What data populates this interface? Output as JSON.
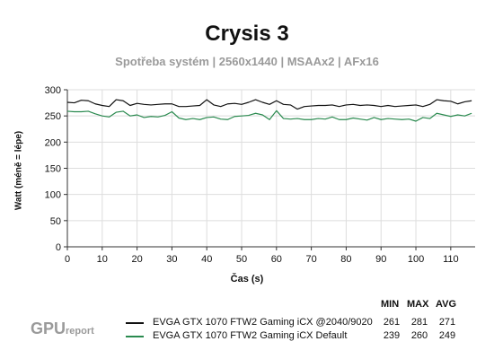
{
  "chart_data": {
    "type": "line",
    "title": "Crysis 3",
    "subtitle": "Spotřeba systém | 2560x1440 | MSAAx2 | AFx16",
    "xlabel": "Čas (s)",
    "ylabel": "Watt (méně = lépe)",
    "xlim": [
      0,
      117
    ],
    "ylim": [
      0,
      300
    ],
    "xticks": [
      0,
      10,
      20,
      30,
      40,
      50,
      60,
      70,
      80,
      90,
      100,
      110
    ],
    "yticks": [
      0,
      50,
      100,
      150,
      200,
      250,
      300
    ],
    "grid": true,
    "legend_position": "bottom",
    "stat_headers": [
      "MIN",
      "MAX",
      "AVG"
    ],
    "series": [
      {
        "name": "EVGA GTX 1070 FTW2 Gaming iCX @2040/9020",
        "color": "#111111",
        "min": "261",
        "max": "281",
        "avg": "271",
        "x": [
          0,
          2,
          4,
          6,
          8,
          10,
          12,
          14,
          16,
          18,
          20,
          22,
          24,
          26,
          28,
          30,
          32,
          34,
          36,
          38,
          40,
          42,
          44,
          46,
          48,
          50,
          52,
          54,
          56,
          58,
          60,
          62,
          64,
          66,
          68,
          70,
          72,
          74,
          76,
          78,
          80,
          82,
          84,
          86,
          88,
          90,
          92,
          94,
          96,
          98,
          100,
          102,
          104,
          106,
          108,
          110,
          112,
          114,
          116
        ],
        "values": [
          276,
          275,
          280,
          279,
          273,
          270,
          268,
          281,
          279,
          270,
          274,
          272,
          271,
          272,
          273,
          273,
          268,
          268,
          269,
          270,
          281,
          271,
          268,
          273,
          274,
          272,
          276,
          281,
          276,
          272,
          279,
          272,
          271,
          263,
          268,
          269,
          270,
          270,
          271,
          268,
          271,
          272,
          270,
          271,
          270,
          268,
          270,
          268,
          269,
          270,
          271,
          268,
          272,
          281,
          279,
          278,
          273,
          277,
          279
        ]
      },
      {
        "name": "EVGA GTX 1070 FTW2 Gaming iCX Default",
        "color": "#2a8a4f",
        "min": "239",
        "max": "260",
        "avg": "249",
        "x": [
          0,
          2,
          4,
          6,
          8,
          10,
          12,
          14,
          16,
          18,
          20,
          22,
          24,
          26,
          28,
          30,
          32,
          34,
          36,
          38,
          40,
          42,
          44,
          46,
          48,
          50,
          52,
          54,
          56,
          58,
          60,
          62,
          64,
          66,
          68,
          70,
          72,
          74,
          76,
          78,
          80,
          82,
          84,
          86,
          88,
          90,
          92,
          94,
          96,
          98,
          100,
          102,
          104,
          106,
          108,
          110,
          112,
          114,
          116
        ],
        "values": [
          259,
          258,
          258,
          259,
          254,
          250,
          248,
          257,
          259,
          250,
          252,
          247,
          249,
          248,
          251,
          258,
          246,
          243,
          245,
          243,
          247,
          248,
          244,
          243,
          249,
          250,
          251,
          255,
          252,
          243,
          260,
          245,
          244,
          245,
          243,
          243,
          245,
          244,
          248,
          243,
          243,
          246,
          244,
          242,
          247,
          243,
          245,
          244,
          243,
          244,
          240,
          247,
          245,
          255,
          252,
          249,
          252,
          250,
          255
        ]
      }
    ]
  },
  "logo": {
    "main": "GPU",
    "suffix": "report"
  }
}
